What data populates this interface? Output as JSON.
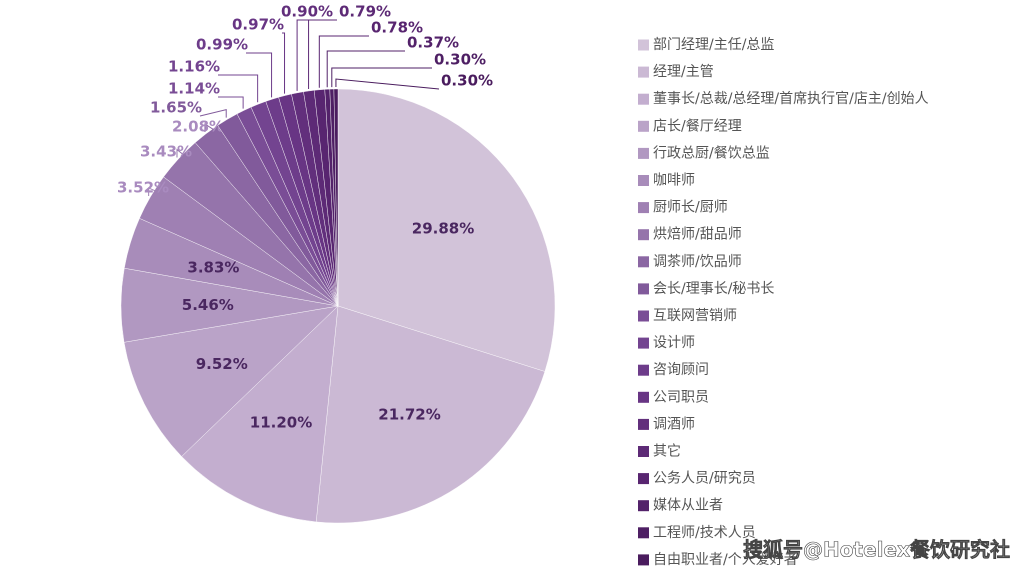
{
  "chart_data": {
    "type": "pie",
    "categories": [
      "部门经理/主任/总监",
      "经理/主管",
      "董事长/总裁/总经理/首席执行官/店主/创始人",
      "店长/餐厅经理",
      "行政总厨/餐饮总监",
      "咖啡师",
      "厨师长/厨师",
      "烘焙师/甜品师",
      "调茶师/饮品师",
      "会长/理事长/秘书长",
      "互联网营销师",
      "设计师",
      "咨询顾问",
      "公司职员",
      "调酒师",
      "其它",
      "公务人员/研究员",
      "媒体从业者",
      "工程师/技术人员",
      "自由职业者/个人爱好者"
    ],
    "values": [
      29.88,
      21.72,
      11.2,
      9.52,
      5.46,
      3.83,
      3.52,
      3.43,
      2.08,
      1.65,
      1.14,
      1.16,
      0.99,
      0.97,
      0.9,
      0.79,
      0.78,
      0.37,
      0.3,
      0.3
    ],
    "value_labels": [
      "29.88%",
      "21.72%",
      "11.20%",
      "9.52%",
      "5.46%",
      "3.83%",
      "3.52%",
      "3.43%",
      "2.08%",
      "1.65%",
      "1.14%",
      "1.16%",
      "0.99%",
      "0.97%",
      "0.90%",
      "0.79%",
      "0.78%",
      "0.37%",
      "0.30%",
      "0.30%"
    ],
    "colors": [
      "#d2c3d9",
      "#cbb9d4",
      "#c3aecf",
      "#baa3c8",
      "#b198c1",
      "#a88cba",
      "#9f80b3",
      "#9574ab",
      "#8b67a3",
      "#815a9b",
      "#7a4d96",
      "#734490",
      "#6d3c8a",
      "#683584",
      "#622f7c",
      "#5d2a76",
      "#582570",
      "#53226a",
      "#4e1f64",
      "#4a1c5e"
    ],
    "legend": "right",
    "watermark": "搜狐号@Hotelex餐饮研究社"
  }
}
